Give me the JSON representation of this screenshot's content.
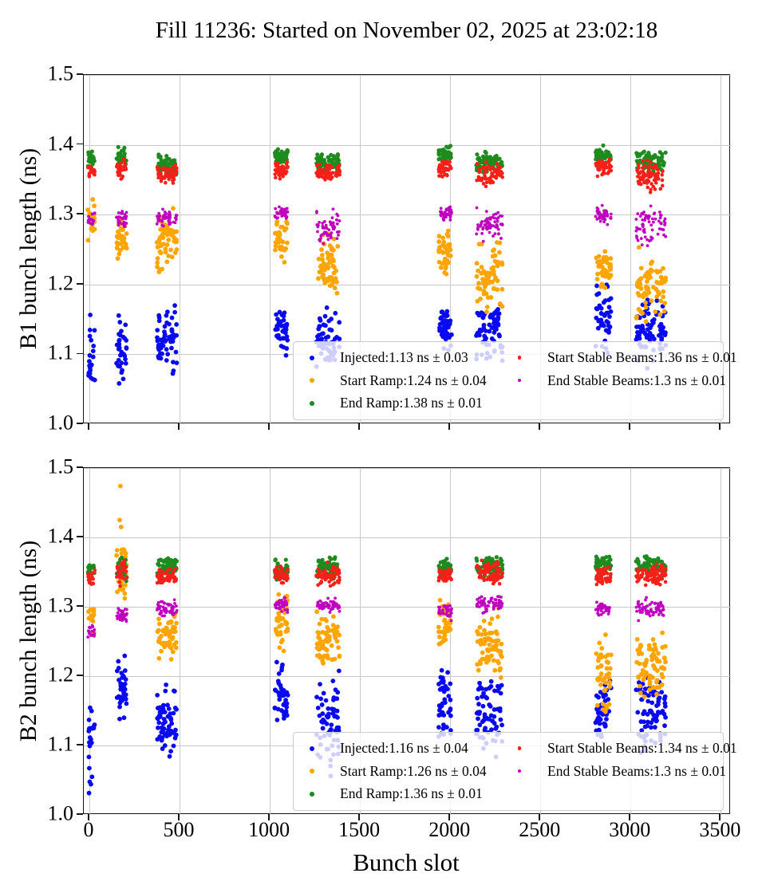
{
  "title": "Fill 11236: Started on November 02, 2025 at 23:02:18",
  "colors": {
    "blue": "#0a0af0",
    "orange": "#ffa500",
    "green": "#1e8b1e",
    "red": "#f52019",
    "magenta": "#bf00bf",
    "grid": "#c9c9c9",
    "spine": "#161616"
  },
  "chart_data": [
    {
      "type": "scatter",
      "name": "B1",
      "ylabel": "B1 bunch length (ns)",
      "xlabel": "Bunch slot",
      "xlim": [
        -31,
        3556
      ],
      "ylim": [
        1.0,
        1.5
      ],
      "xticks": [
        0,
        500,
        1000,
        1500,
        2000,
        2500,
        3000,
        3500
      ],
      "ytick_labels": [
        "1.0",
        "1.1",
        "1.2",
        "1.3",
        "1.4",
        "1.5"
      ],
      "x_tick_labels_visible": false,
      "grid": true,
      "legend_position": "lower right",
      "legend": [
        {
          "label": "Injected:1.13 ns ± 0.03",
          "series": "Injected",
          "mean": 1.13,
          "std": 0.03,
          "color": "blue",
          "r": 3.2
        },
        {
          "label": "Start Ramp:1.24 ns ± 0.04",
          "series": "Start Ramp",
          "mean": 1.24,
          "std": 0.04,
          "color": "orange",
          "r": 3.2
        },
        {
          "label": "End Ramp:1.38 ns ± 0.01",
          "series": "End Ramp",
          "mean": 1.38,
          "std": 0.01,
          "color": "green",
          "r": 2.8
        },
        {
          "label": "Start Stable Beams:1.36 ns ± 0.01",
          "series": "Start Stable Beams",
          "mean": 1.36,
          "std": 0.01,
          "color": "red",
          "r": 2.4
        },
        {
          "label": "End Stable Beams:1.3 ns ± 0.01",
          "series": "End Stable Beams",
          "mean": 1.3,
          "std": 0.01,
          "color": "magenta",
          "r": 2.0
        }
      ],
      "series": [
        {
          "name": "Injected",
          "color": "blue",
          "r": 2.9,
          "clusters": [
            [
              -8,
              30,
              1.03,
              1.16,
              20
            ],
            [
              150,
              208,
              1.055,
              1.165,
              34
            ],
            [
              375,
              485,
              1.065,
              1.175,
              58
            ],
            [
              1028,
              1100,
              1.095,
              1.17,
              40
            ],
            [
              1258,
              1388,
              1.075,
              1.17,
              66
            ],
            [
              1936,
              2008,
              1.095,
              1.18,
              42
            ],
            [
              2145,
              2290,
              1.08,
              1.18,
              70
            ],
            [
              2806,
              2892,
              1.09,
              1.21,
              46
            ],
            [
              3030,
              3195,
              1.08,
              1.19,
              74
            ]
          ]
        },
        {
          "name": "Start Ramp",
          "color": "orange",
          "r": 2.9,
          "clusters": [
            [
              -8,
              30,
              1.255,
              1.335,
              18
            ],
            [
              150,
              208,
              1.225,
              1.305,
              32
            ],
            [
              375,
              485,
              1.21,
              1.315,
              56
            ],
            [
              1028,
              1100,
              1.225,
              1.3,
              38
            ],
            [
              1258,
              1388,
              1.17,
              1.285,
              64
            ],
            [
              1936,
              2008,
              1.205,
              1.28,
              40
            ],
            [
              2145,
              2290,
              1.16,
              1.27,
              68
            ],
            [
              2806,
              2892,
              1.19,
              1.255,
              44
            ],
            [
              3030,
              3195,
              1.14,
              1.255,
              72
            ]
          ]
        },
        {
          "name": "End Ramp",
          "color": "green",
          "r": 2.6,
          "clusters": [
            [
              -8,
              30,
              1.365,
              1.395,
              20
            ],
            [
              150,
              208,
              1.365,
              1.4,
              34
            ],
            [
              375,
              485,
              1.355,
              1.39,
              58
            ],
            [
              1028,
              1100,
              1.37,
              1.4,
              40
            ],
            [
              1258,
              1388,
              1.36,
              1.39,
              66
            ],
            [
              1936,
              2008,
              1.37,
              1.4,
              42
            ],
            [
              2145,
              2290,
              1.36,
              1.39,
              70
            ],
            [
              2806,
              2892,
              1.37,
              1.4,
              46
            ],
            [
              3030,
              3195,
              1.355,
              1.395,
              74
            ]
          ]
        },
        {
          "name": "Start Stable Beams",
          "color": "red",
          "r": 2.3,
          "clusters": [
            [
              -8,
              30,
              1.35,
              1.375,
              20
            ],
            [
              150,
              208,
              1.35,
              1.38,
              34
            ],
            [
              375,
              485,
              1.34,
              1.375,
              58
            ],
            [
              1028,
              1100,
              1.35,
              1.38,
              40
            ],
            [
              1258,
              1388,
              1.345,
              1.375,
              66
            ],
            [
              1936,
              2008,
              1.35,
              1.38,
              42
            ],
            [
              2145,
              2290,
              1.34,
              1.375,
              70
            ],
            [
              2806,
              2892,
              1.355,
              1.385,
              46
            ],
            [
              3030,
              3195,
              1.33,
              1.38,
              74
            ]
          ]
        },
        {
          "name": "End Stable Beams",
          "color": "magenta",
          "r": 1.9,
          "clusters": [
            [
              -8,
              30,
              1.28,
              1.305,
              18
            ],
            [
              150,
              208,
              1.28,
              1.31,
              30
            ],
            [
              375,
              485,
              1.28,
              1.31,
              52
            ],
            [
              1028,
              1100,
              1.29,
              1.315,
              36
            ],
            [
              1258,
              1388,
              1.25,
              1.31,
              58
            ],
            [
              1936,
              2008,
              1.29,
              1.315,
              38
            ],
            [
              2145,
              2290,
              1.26,
              1.315,
              62
            ],
            [
              2806,
              2892,
              1.285,
              1.315,
              42
            ],
            [
              3030,
              3195,
              1.25,
              1.32,
              66
            ]
          ]
        }
      ]
    },
    {
      "type": "scatter",
      "name": "B2",
      "ylabel": "B2 bunch length (ns)",
      "xlabel": "Bunch slot",
      "xlim": [
        -31,
        3556
      ],
      "ylim": [
        1.0,
        1.5
      ],
      "xticks": [
        0,
        500,
        1000,
        1500,
        2000,
        2500,
        3000,
        3500
      ],
      "ytick_labels": [
        "1.0",
        "1.1",
        "1.2",
        "1.3",
        "1.4",
        "1.5"
      ],
      "x_tick_labels_visible": true,
      "grid": true,
      "legend_position": "lower right",
      "legend": [
        {
          "label": "Injected:1.16 ns ± 0.04",
          "series": "Injected",
          "mean": 1.16,
          "std": 0.04,
          "color": "blue",
          "r": 3.2
        },
        {
          "label": "Start Ramp:1.26 ns ± 0.04",
          "series": "Start Ramp",
          "mean": 1.26,
          "std": 0.04,
          "color": "orange",
          "r": 3.2
        },
        {
          "label": "End Ramp:1.36 ns ± 0.01",
          "series": "End Ramp",
          "mean": 1.36,
          "std": 0.01,
          "color": "green",
          "r": 2.8
        },
        {
          "label": "Start Stable Beams:1.34 ns ± 0.01",
          "series": "Start Stable Beams",
          "mean": 1.34,
          "std": 0.01,
          "color": "red",
          "r": 2.4
        },
        {
          "label": "End Stable Beams:1.3 ns ± 0.01",
          "series": "End Stable Beams",
          "mean": 1.3,
          "std": 0.01,
          "color": "magenta",
          "r": 2.0
        }
      ],
      "series": [
        {
          "name": "Injected",
          "color": "blue",
          "r": 2.9,
          "clusters": [
            [
              -8,
              30,
              1.005,
              1.22,
              22
            ],
            [
              150,
              208,
              1.12,
              1.25,
              36
            ],
            [
              375,
              485,
              1.08,
              1.19,
              60
            ],
            [
              1028,
              1100,
              1.12,
              1.23,
              42
            ],
            [
              1258,
              1388,
              1.05,
              1.21,
              66
            ],
            [
              1936,
              2008,
              1.1,
              1.23,
              44
            ],
            [
              2145,
              2290,
              1.08,
              1.21,
              72
            ],
            [
              2806,
              2892,
              1.1,
              1.22,
              48
            ],
            [
              3030,
              3195,
              1.08,
              1.22,
              76
            ]
          ]
        },
        {
          "name": "Start Ramp",
          "color": "orange",
          "r": 2.9,
          "clusters": [
            [
              -8,
              30,
              1.25,
              1.32,
              16
            ],
            [
              150,
              208,
              1.29,
              1.43,
              32
            ],
            [
              375,
              485,
              1.22,
              1.3,
              56
            ],
            [
              1028,
              1100,
              1.235,
              1.335,
              38
            ],
            [
              1258,
              1388,
              1.21,
              1.3,
              62
            ],
            [
              1936,
              2008,
              1.23,
              1.32,
              36
            ],
            [
              2145,
              2290,
              1.19,
              1.3,
              68
            ],
            [
              2806,
              2892,
              1.14,
              1.27,
              44
            ],
            [
              3030,
              3195,
              1.16,
              1.28,
              74
            ]
          ],
          "outliers": [
            [
              172,
              1.474
            ],
            [
              168,
              1.425
            ],
            [
              176,
              1.415
            ]
          ]
        },
        {
          "name": "End Ramp",
          "color": "green",
          "r": 2.6,
          "clusters": [
            [
              -8,
              30,
              1.345,
              1.365,
              18
            ],
            [
              150,
              208,
              1.335,
              1.38,
              34
            ],
            [
              375,
              485,
              1.345,
              1.375,
              58
            ],
            [
              1028,
              1100,
              1.335,
              1.37,
              40
            ],
            [
              1258,
              1388,
              1.34,
              1.375,
              64
            ],
            [
              1936,
              2008,
              1.34,
              1.37,
              42
            ],
            [
              2145,
              2290,
              1.34,
              1.375,
              70
            ],
            [
              2806,
              2892,
              1.35,
              1.375,
              46
            ],
            [
              3030,
              3195,
              1.345,
              1.375,
              74
            ]
          ]
        },
        {
          "name": "Start Stable Beams",
          "color": "red",
          "r": 2.3,
          "clusters": [
            [
              -8,
              30,
              1.325,
              1.355,
              18
            ],
            [
              150,
              208,
              1.33,
              1.37,
              34
            ],
            [
              375,
              485,
              1.33,
              1.36,
              58
            ],
            [
              1028,
              1100,
              1.33,
              1.365,
              40
            ],
            [
              1258,
              1388,
              1.33,
              1.365,
              64
            ],
            [
              1936,
              2008,
              1.33,
              1.36,
              42
            ],
            [
              2145,
              2290,
              1.33,
              1.37,
              70
            ],
            [
              2806,
              2892,
              1.33,
              1.36,
              46
            ],
            [
              3030,
              3195,
              1.33,
              1.365,
              74
            ]
          ]
        },
        {
          "name": "End Stable Beams",
          "color": "magenta",
          "r": 1.9,
          "clusters": [
            [
              -8,
              30,
              1.25,
              1.275,
              16
            ],
            [
              150,
              208,
              1.275,
              1.3,
              30
            ],
            [
              375,
              485,
              1.285,
              1.31,
              52
            ],
            [
              1028,
              1100,
              1.29,
              1.315,
              36
            ],
            [
              1258,
              1388,
              1.29,
              1.315,
              58
            ],
            [
              1936,
              2008,
              1.28,
              1.31,
              38
            ],
            [
              2145,
              2290,
              1.29,
              1.32,
              62
            ],
            [
              2806,
              2892,
              1.285,
              1.31,
              42
            ],
            [
              3030,
              3195,
              1.28,
              1.315,
              66
            ]
          ]
        }
      ]
    }
  ]
}
